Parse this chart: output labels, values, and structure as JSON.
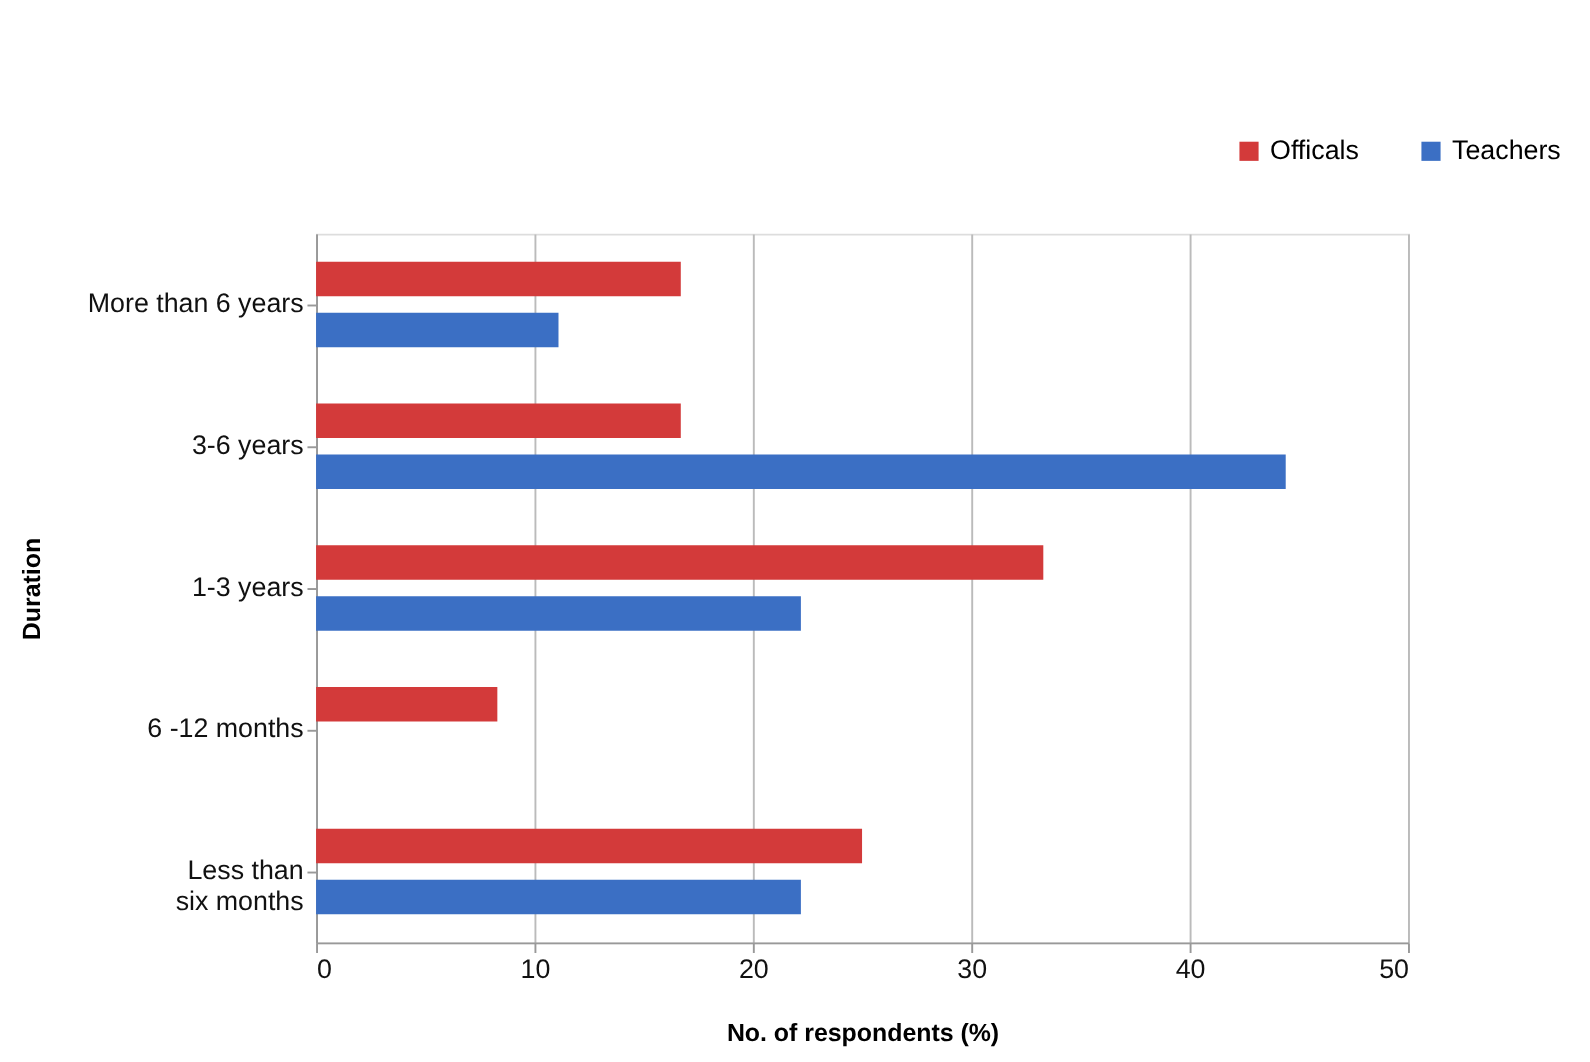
{
  "chart_data": {
    "type": "bar",
    "orientation": "horizontal",
    "xlabel": "No. of respondents  (%)",
    "ylabel": "Duration",
    "categories": [
      "More than  6 years",
      "3-6 years",
      "1-3 years",
      "6 -12 months",
      "Less than\nsix months"
    ],
    "series": [
      {
        "name": "Officals",
        "color": "#d33a3a",
        "values": [
          16.7,
          16.7,
          33.3,
          8.3,
          25
        ]
      },
      {
        "name": "Teachers",
        "color": "#3b6fc4",
        "values": [
          11.1,
          44.4,
          22.2,
          0,
          22.2
        ]
      }
    ],
    "xlim": [
      0,
      50
    ],
    "xticks": [
      0,
      10,
      20,
      30,
      40,
      50
    ],
    "grid": "x",
    "legend": "top right"
  }
}
